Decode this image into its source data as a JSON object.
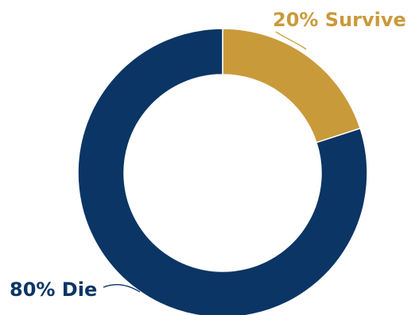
{
  "chart_data": {
    "type": "pie",
    "variant": "donut",
    "title": "",
    "legend": "none",
    "slices": [
      {
        "value": 20,
        "label": "20% Survive",
        "color": "#C99A3A"
      },
      {
        "value": 80,
        "label": "80% Die",
        "color": "#0B3564"
      }
    ],
    "label_color": "#0B3564",
    "accent_label_color": "#C99A3A",
    "background": "#ffffff"
  }
}
